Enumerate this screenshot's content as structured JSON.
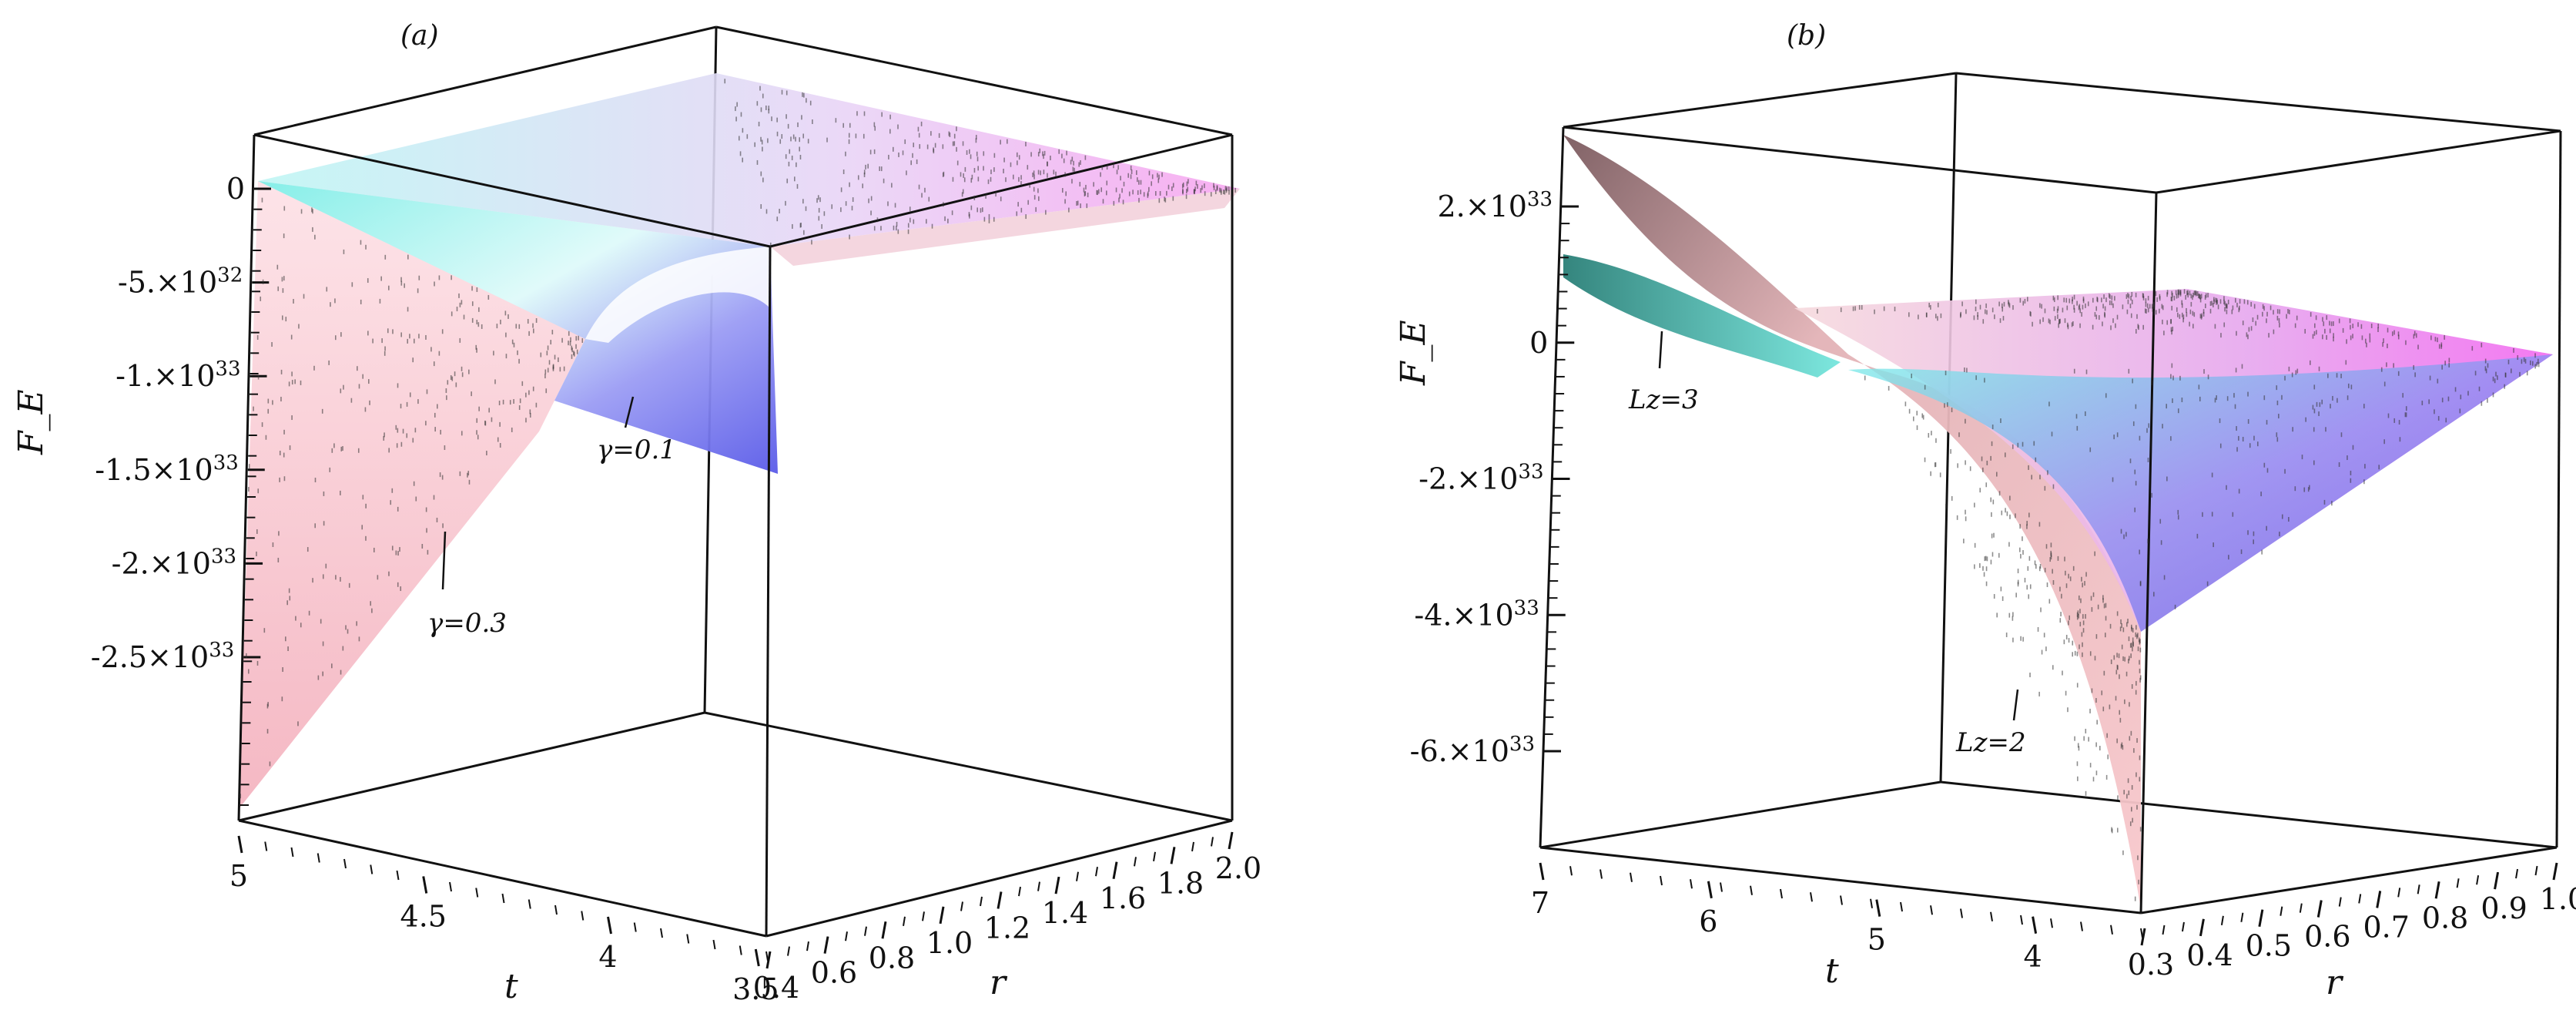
{
  "chart_data": [
    {
      "type": "surface3d",
      "panel_label": "(a)",
      "zlabel": "F_E",
      "xlabel": "t",
      "ylabel": "r",
      "z_ticks": [
        "0",
        "-5.×10^32",
        "-1.×10^33",
        "-1.5×10^33",
        "-2.×10^33",
        "-2.5×10^33"
      ],
      "t_ticks": [
        "5",
        "4.5",
        "4",
        "3.5"
      ],
      "r_ticks": [
        "0.4",
        "0.6",
        "0.8",
        "1.0",
        "1.2",
        "1.4",
        "1.6",
        "1.8",
        "2.0"
      ],
      "t_range": [
        3,
        5
      ],
      "r_range": [
        0.4,
        2.0
      ],
      "zlim": [
        -2.9e+33,
        2e+32
      ],
      "series": [
        {
          "name": "γ=0.1",
          "label": "γ=0.1",
          "colormap": [
            "#7fefe8",
            "#ffffff",
            "#6b6cf0",
            "#f58cf0"
          ],
          "min_value": -1.4e+33
        },
        {
          "name": "γ=0.3",
          "label": "γ=0.3",
          "colormap": [
            "#fbd0d8",
            "#f7b6c2"
          ],
          "min_value": -2.9e+33
        }
      ]
    },
    {
      "type": "surface3d",
      "panel_label": "(b)",
      "zlabel": "F_E",
      "xlabel": "t",
      "ylabel": "r",
      "z_ticks": [
        "2.×10^33",
        "0",
        "-2.×10^33",
        "-4.×10^33",
        "-6.×10^33"
      ],
      "t_ticks": [
        "7",
        "6",
        "5",
        "4"
      ],
      "r_ticks": [
        "0.3",
        "0.4",
        "0.5",
        "0.6",
        "0.7",
        "0.8",
        "0.9",
        "1.0"
      ],
      "t_range": [
        3,
        7
      ],
      "r_range": [
        0.3,
        1.0
      ],
      "zlim": [
        -7.5e+33,
        3e+33
      ],
      "series": [
        {
          "name": "Lz=2",
          "label": "Lz=2",
          "colormap": [
            "#f7c2c6",
            "#d9a3a7",
            "#7a5a5e"
          ],
          "min_value": -7.5e+33
        },
        {
          "name": "Lz=3",
          "label": "Lz=3",
          "colormap": [
            "#2e8f86",
            "#7fefe8",
            "#6b6cf0",
            "#f58cf0"
          ],
          "min_value": -4.2e+33
        }
      ]
    }
  ]
}
